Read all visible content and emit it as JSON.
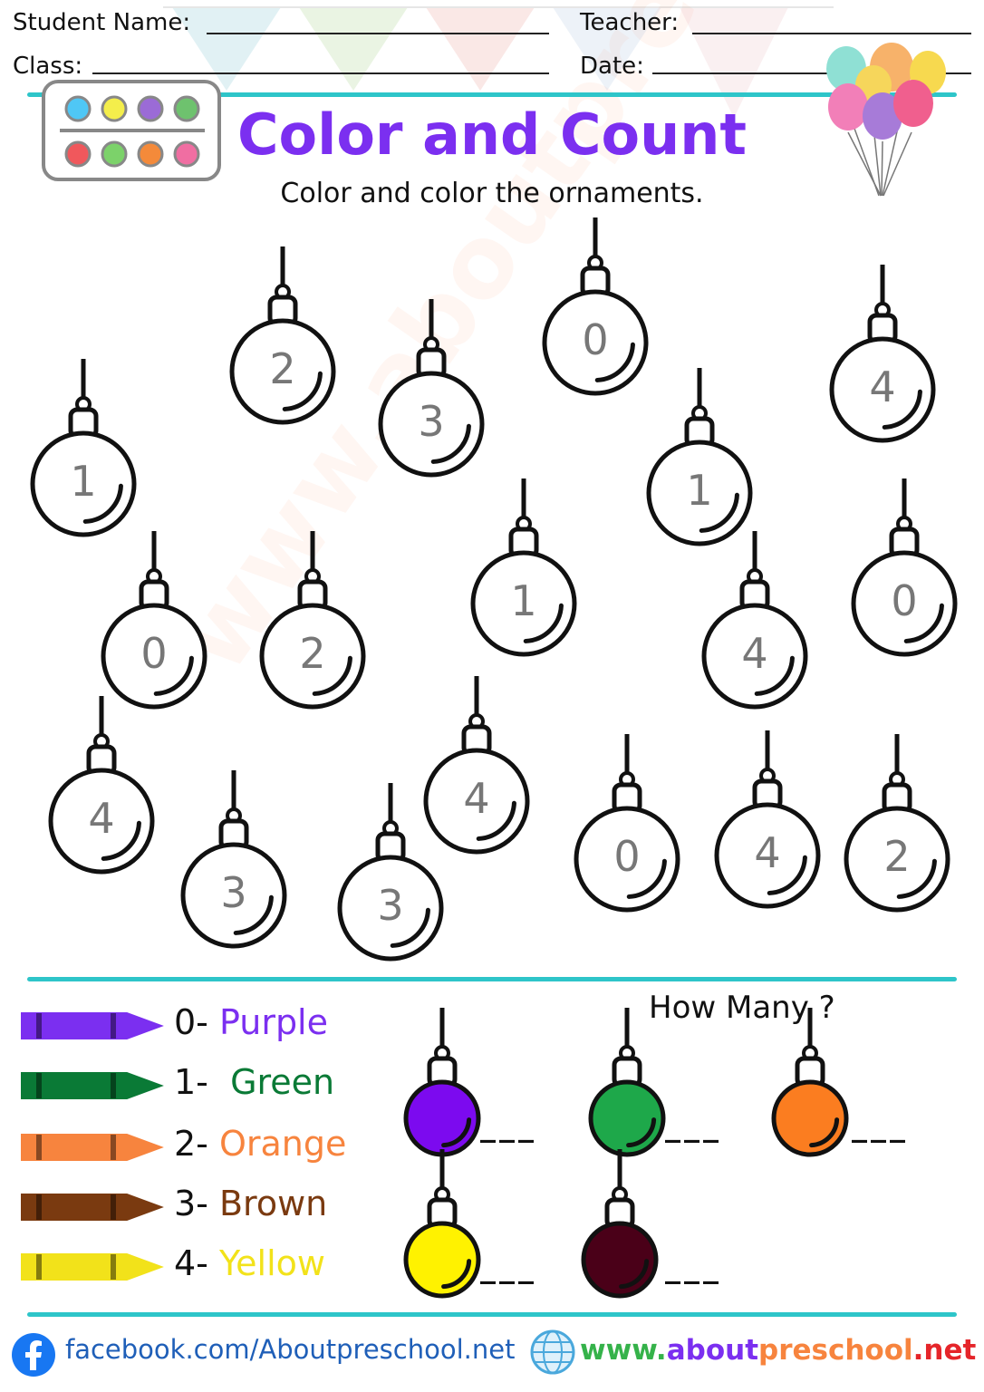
{
  "header": {
    "student_name_label": "Student Name:",
    "teacher_label": "Teacher:",
    "class_label": "Class:",
    "date_label": "Date:"
  },
  "title": "Color and Count",
  "subtitle": "Color and color the ornaments.",
  "ornaments": [
    "2",
    "0",
    "4",
    "3",
    "1",
    "1",
    "1",
    "0",
    "2",
    "4",
    "0",
    "4",
    "4",
    "3",
    "3",
    "0",
    "4",
    "2"
  ],
  "key": [
    {
      "num": "0-",
      "color_name": "Purple",
      "color": "#7b2ff0"
    },
    {
      "num": "1-",
      "color_name": "Green",
      "color": "#0a7a36"
    },
    {
      "num": "2-",
      "color_name": "Orange",
      "color": "#f7843e"
    },
    {
      "num": "3-",
      "color_name": "Brown",
      "color": "#7a3a10"
    },
    {
      "num": "4-",
      "color_name": "Yellow",
      "color": "#f2e21a"
    }
  ],
  "how_many": {
    "label": "How Many ?",
    "blank": "___",
    "swatches": [
      "#7c0aef",
      "#1ea84a",
      "#fb7d20",
      "#fff200",
      "#4a0018"
    ]
  },
  "footer": {
    "facebook": "facebook.com/Aboutpreschool.net",
    "site_prefix": "www.",
    "site_about": "about",
    "site_preschool": "preschool",
    "site_net": ".net"
  },
  "watermark": "www.aboutpreschool.net",
  "colors": {
    "accent_rule": "#2ec5c9",
    "title": "#7b2ff0"
  }
}
